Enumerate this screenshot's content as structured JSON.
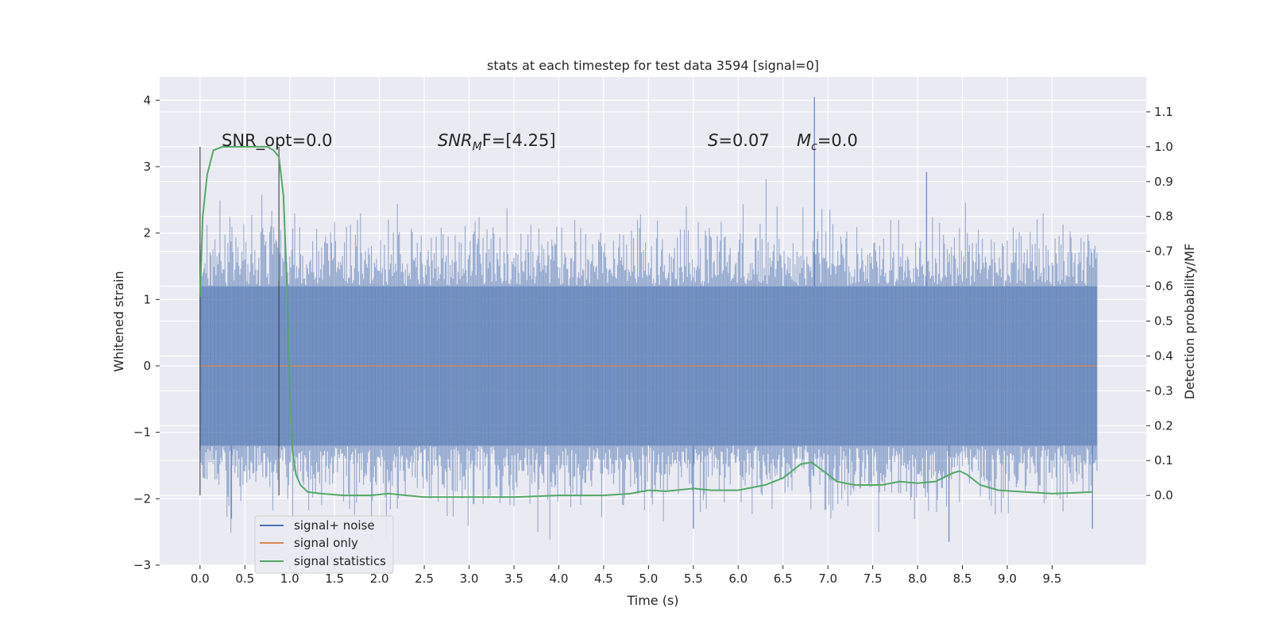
{
  "chart_data": {
    "type": "line",
    "title": "stats at each timestep for test data 3594 [signal=0]",
    "xlabel": "Time (s)",
    "ylabel_left": "Whitened strain",
    "ylabel_right": "Detection probability/MF",
    "xlim": [
      -0.45,
      10.55
    ],
    "ylim_left": [
      -3.0,
      4.35
    ],
    "ylim_right": [
      -0.2,
      1.2
    ],
    "x_ticks": [
      "0.0",
      "0.5",
      "1.0",
      "1.5",
      "2.0",
      "2.5",
      "3.0",
      "3.5",
      "4.0",
      "4.5",
      "5.0",
      "5.5",
      "6.0",
      "6.5",
      "7.0",
      "7.5",
      "8.0",
      "8.5",
      "9.0",
      "9.5"
    ],
    "y_ticks_left": [
      "−3",
      "−2",
      "−1",
      "0",
      "1",
      "2",
      "3",
      "4"
    ],
    "y_ticks_right": [
      "0.0",
      "0.1",
      "0.2",
      "0.3",
      "0.4",
      "0.5",
      "0.6",
      "0.7",
      "0.8",
      "0.9",
      "1.0",
      "1.1"
    ],
    "grid": true,
    "legend_position": "lower-left",
    "annotations": {
      "snr_opt": "SNR_opt=0.0",
      "snr_mf_main": "SNR",
      "snr_mf_sub": "M",
      "snr_mf_rest": "F=[4.25]",
      "s_main": "S",
      "s_rest": "=0.07",
      "mc_main": "M",
      "mc_sub": "c",
      "mc_rest": "=0.0"
    },
    "markers": [
      {
        "x": 0.0,
        "y_range": [
          -1.95,
          3.3
        ]
      },
      {
        "x": 0.88,
        "y_range": [
          -1.95,
          3.3
        ]
      }
    ],
    "series": [
      {
        "name": "signal+ noise",
        "color": "#4c72b0",
        "axis": "left",
        "x_range": [
          0.0,
          10.0
        ],
        "typical_band": [
          -1.2,
          1.2
        ],
        "peaks": [
          {
            "x": 6.85,
            "y": 4.05
          },
          {
            "x": 8.1,
            "y": 2.92
          },
          {
            "x": 8.35,
            "y": -2.65
          },
          {
            "x": 9.95,
            "y": -2.45
          },
          {
            "x": 0.35,
            "y": -2.3
          },
          {
            "x": 5.5,
            "y": -2.45
          }
        ]
      },
      {
        "name": "signal only",
        "color": "#dd8452",
        "axis": "left",
        "x": [
          0.0,
          10.0
        ],
        "y": [
          0.0,
          0.0
        ]
      },
      {
        "name": "signal statistics",
        "color": "#55a868",
        "axis": "right",
        "x": [
          0.0,
          0.03,
          0.08,
          0.15,
          0.25,
          0.4,
          0.6,
          0.75,
          0.82,
          0.88,
          0.93,
          0.97,
          1.0,
          1.03,
          1.07,
          1.12,
          1.2,
          1.35,
          1.6,
          1.9,
          2.1,
          2.5,
          3.0,
          3.5,
          4.0,
          4.5,
          4.8,
          5.0,
          5.2,
          5.5,
          5.7,
          6.0,
          6.3,
          6.5,
          6.7,
          6.82,
          6.95,
          7.1,
          7.3,
          7.6,
          7.8,
          8.0,
          8.2,
          8.4,
          8.47,
          8.55,
          8.7,
          8.9,
          9.2,
          9.5,
          9.8,
          9.95
        ],
        "y": [
          0.57,
          0.8,
          0.92,
          0.99,
          1.0,
          1.0,
          1.0,
          1.0,
          0.99,
          0.97,
          0.86,
          0.6,
          0.3,
          0.13,
          0.06,
          0.03,
          0.01,
          0.005,
          0.0,
          0.0,
          0.005,
          -0.005,
          -0.005,
          -0.005,
          0.0,
          0.0,
          0.005,
          0.015,
          0.012,
          0.02,
          0.015,
          0.015,
          0.03,
          0.05,
          0.09,
          0.095,
          0.07,
          0.04,
          0.03,
          0.03,
          0.04,
          0.035,
          0.04,
          0.065,
          0.07,
          0.06,
          0.03,
          0.015,
          0.01,
          0.005,
          0.008,
          0.01
        ]
      }
    ]
  }
}
